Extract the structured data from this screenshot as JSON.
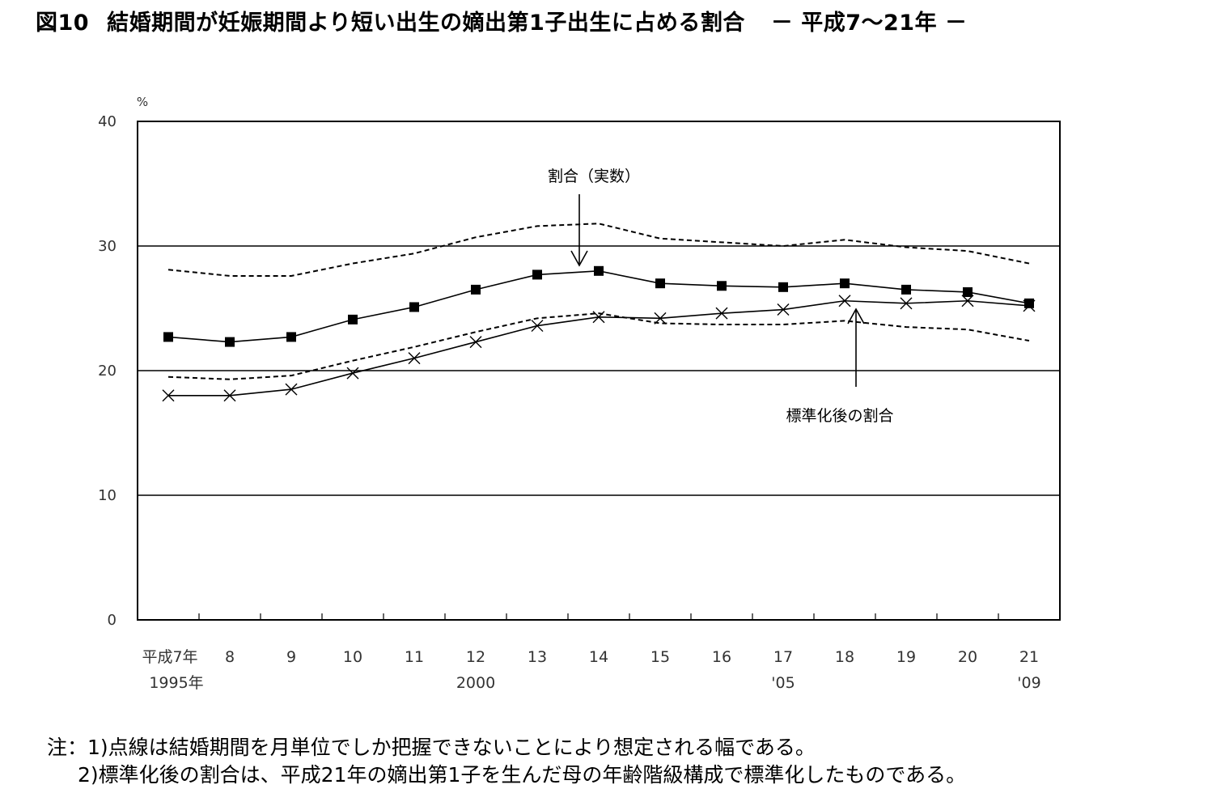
{
  "title": {
    "figure_number": "図10",
    "text": "結婚期間が妊娠期間より短い出生の嫡出第1子出生に占める割合",
    "period": "－ 平成7〜21年 －"
  },
  "chart_data": {
    "type": "line",
    "y_unit": "%",
    "ylim": [
      0,
      40
    ],
    "y_ticks": [
      "0",
      "10",
      "20",
      "30",
      "40"
    ],
    "grid": "horizontal at 10, 20, 30",
    "categories": [
      "平成7年",
      "8",
      "9",
      "10",
      "11",
      "12",
      "13",
      "14",
      "15",
      "16",
      "17",
      "18",
      "19",
      "20",
      "21"
    ],
    "x_sublabels": {
      "0": "1995年",
      "5": "2000",
      "10": "'05",
      "14": "'09"
    },
    "series": [
      {
        "name": "割合（実数）",
        "marker": "filled-square",
        "style": "solid",
        "values": [
          22.7,
          22.3,
          22.7,
          24.1,
          25.1,
          26.5,
          27.7,
          28.0,
          27.0,
          26.8,
          26.7,
          27.0,
          26.5,
          26.3,
          25.4
        ]
      },
      {
        "name": "標準化後の割合",
        "marker": "x",
        "style": "solid",
        "values": [
          18.0,
          18.0,
          18.5,
          19.8,
          21.0,
          22.3,
          23.6,
          24.3,
          24.2,
          24.6,
          24.9,
          25.6,
          25.4,
          25.6,
          25.2
        ]
      },
      {
        "name": "",
        "marker": "none",
        "style": "dashed",
        "values": [
          28.1,
          27.6,
          27.6,
          28.6,
          29.4,
          30.7,
          31.6,
          31.8,
          30.6,
          30.3,
          30.0,
          30.5,
          29.9,
          29.6,
          28.6
        ]
      },
      {
        "name": "",
        "marker": "none",
        "style": "dashed",
        "values": [
          19.5,
          19.3,
          19.6,
          20.8,
          21.9,
          23.1,
          24.2,
          24.6,
          23.8,
          23.7,
          23.7,
          24.0,
          23.5,
          23.3,
          22.4
        ]
      }
    ],
    "annotations": [
      {
        "text": "割合（実数）",
        "points_to_series": 0
      },
      {
        "text": "標準化後の割合",
        "points_to_series": 1
      }
    ]
  },
  "notes": [
    "注：1)点線は結婚期間を月単位でしか把握できないことにより想定される幅である。",
    "2)標準化後の割合は、平成21年の嫡出第1子を生んだ母の年齢階級構成で標準化したものである。"
  ]
}
